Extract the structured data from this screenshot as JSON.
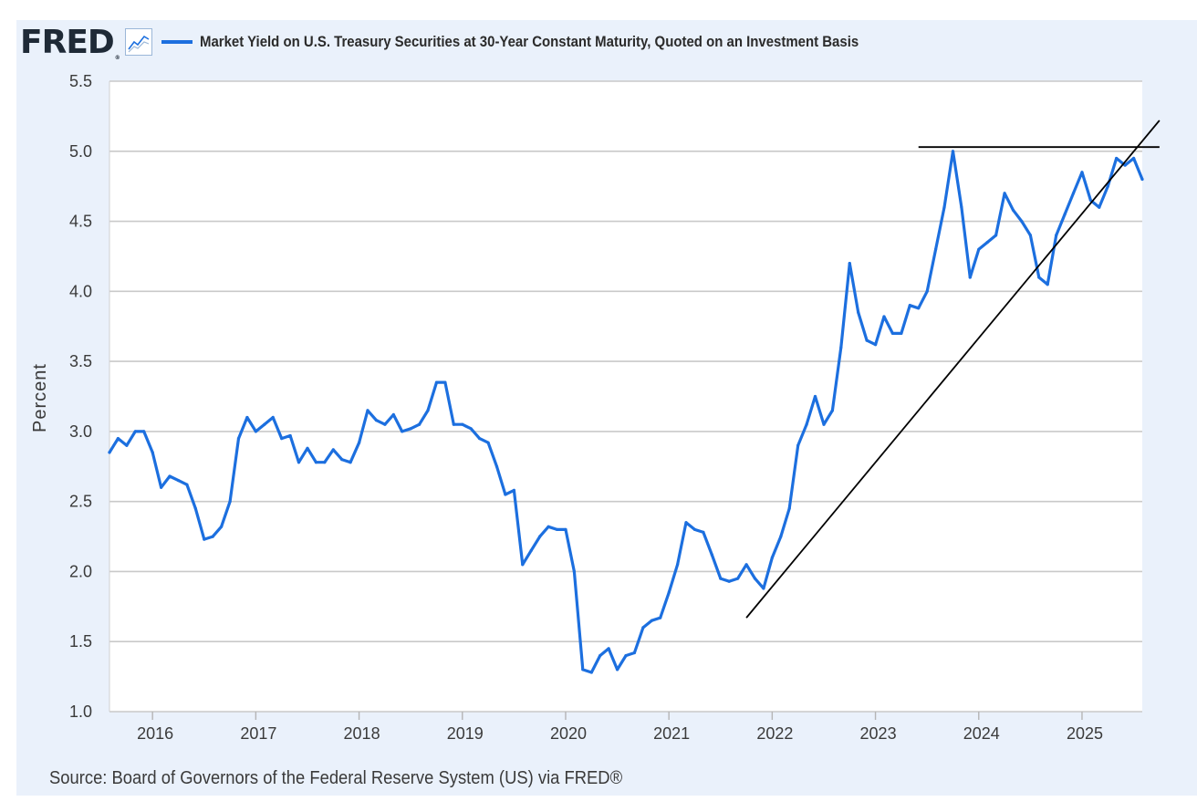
{
  "header": {
    "logo": "FRED",
    "logo_reg": "®",
    "series_title": "Market Yield on U.S. Treasury Securities at 30-Year Constant Maturity, Quoted on an Investment Basis"
  },
  "footer": {
    "source": "Source: Board of Governors of the Federal Reserve System (US) via FRED®"
  },
  "colors": {
    "frame_bg": "#eaf1fb",
    "series_line": "#1c6fdf",
    "grid": "#c9c9c9",
    "annotation": "#000000"
  },
  "chart_data": {
    "type": "line",
    "title": "Market Yield on U.S. Treasury Securities at 30-Year Constant Maturity, Quoted on an Investment Basis",
    "xlabel": "",
    "ylabel": "Percent",
    "xlim": [
      "2015-08",
      "2025-08"
    ],
    "ylim": [
      1.0,
      5.5
    ],
    "grid": true,
    "x_ticks": [
      "2016",
      "2017",
      "2018",
      "2019",
      "2020",
      "2021",
      "2022",
      "2023",
      "2024",
      "2025"
    ],
    "y_ticks": [
      "1.0",
      "1.5",
      "2.0",
      "2.5",
      "3.0",
      "3.5",
      "4.0",
      "4.5",
      "5.0",
      "5.5"
    ],
    "series": [
      {
        "name": "Market Yield on U.S. Treasury Securities at 30-Year Constant Maturity, Quoted on an Investment Basis",
        "points": [
          [
            "2015-08",
            2.85
          ],
          [
            "2015-09",
            2.95
          ],
          [
            "2015-10",
            2.9
          ],
          [
            "2015-11",
            3.0
          ],
          [
            "2015-12",
            3.0
          ],
          [
            "2016-01",
            2.85
          ],
          [
            "2016-02",
            2.6
          ],
          [
            "2016-03",
            2.68
          ],
          [
            "2016-04",
            2.65
          ],
          [
            "2016-05",
            2.62
          ],
          [
            "2016-06",
            2.45
          ],
          [
            "2016-07",
            2.23
          ],
          [
            "2016-08",
            2.25
          ],
          [
            "2016-09",
            2.32
          ],
          [
            "2016-10",
            2.5
          ],
          [
            "2016-11",
            2.95
          ],
          [
            "2016-12",
            3.1
          ],
          [
            "2017-01",
            3.0
          ],
          [
            "2017-02",
            3.05
          ],
          [
            "2017-03",
            3.1
          ],
          [
            "2017-04",
            2.95
          ],
          [
            "2017-05",
            2.97
          ],
          [
            "2017-06",
            2.78
          ],
          [
            "2017-07",
            2.88
          ],
          [
            "2017-08",
            2.78
          ],
          [
            "2017-09",
            2.78
          ],
          [
            "2017-10",
            2.87
          ],
          [
            "2017-11",
            2.8
          ],
          [
            "2017-12",
            2.78
          ],
          [
            "2018-01",
            2.92
          ],
          [
            "2018-02",
            3.15
          ],
          [
            "2018-03",
            3.08
          ],
          [
            "2018-04",
            3.05
          ],
          [
            "2018-05",
            3.12
          ],
          [
            "2018-06",
            3.0
          ],
          [
            "2018-07",
            3.02
          ],
          [
            "2018-08",
            3.05
          ],
          [
            "2018-09",
            3.15
          ],
          [
            "2018-10",
            3.35
          ],
          [
            "2018-11",
            3.35
          ],
          [
            "2018-12",
            3.05
          ],
          [
            "2019-01",
            3.05
          ],
          [
            "2019-02",
            3.02
          ],
          [
            "2019-03",
            2.95
          ],
          [
            "2019-04",
            2.92
          ],
          [
            "2019-05",
            2.75
          ],
          [
            "2019-06",
            2.55
          ],
          [
            "2019-07",
            2.58
          ],
          [
            "2019-08",
            2.05
          ],
          [
            "2019-09",
            2.15
          ],
          [
            "2019-10",
            2.25
          ],
          [
            "2019-11",
            2.32
          ],
          [
            "2019-12",
            2.3
          ],
          [
            "2020-01",
            2.3
          ],
          [
            "2020-02",
            2.0
          ],
          [
            "2020-03",
            1.3
          ],
          [
            "2020-04",
            1.28
          ],
          [
            "2020-05",
            1.4
          ],
          [
            "2020-06",
            1.45
          ],
          [
            "2020-07",
            1.3
          ],
          [
            "2020-08",
            1.4
          ],
          [
            "2020-09",
            1.42
          ],
          [
            "2020-10",
            1.6
          ],
          [
            "2020-11",
            1.65
          ],
          [
            "2020-12",
            1.67
          ],
          [
            "2021-01",
            1.85
          ],
          [
            "2021-02",
            2.05
          ],
          [
            "2021-03",
            2.35
          ],
          [
            "2021-04",
            2.3
          ],
          [
            "2021-05",
            2.28
          ],
          [
            "2021-06",
            2.12
          ],
          [
            "2021-07",
            1.95
          ],
          [
            "2021-08",
            1.93
          ],
          [
            "2021-09",
            1.95
          ],
          [
            "2021-10",
            2.05
          ],
          [
            "2021-11",
            1.95
          ],
          [
            "2021-12",
            1.88
          ],
          [
            "2022-01",
            2.1
          ],
          [
            "2022-02",
            2.25
          ],
          [
            "2022-03",
            2.45
          ],
          [
            "2022-04",
            2.9
          ],
          [
            "2022-05",
            3.05
          ],
          [
            "2022-06",
            3.25
          ],
          [
            "2022-07",
            3.05
          ],
          [
            "2022-08",
            3.15
          ],
          [
            "2022-09",
            3.6
          ],
          [
            "2022-10",
            4.2
          ],
          [
            "2022-11",
            3.85
          ],
          [
            "2022-12",
            3.65
          ],
          [
            "2023-01",
            3.62
          ],
          [
            "2023-02",
            3.82
          ],
          [
            "2023-03",
            3.7
          ],
          [
            "2023-04",
            3.7
          ],
          [
            "2023-05",
            3.9
          ],
          [
            "2023-06",
            3.88
          ],
          [
            "2023-07",
            4.0
          ],
          [
            "2023-08",
            4.3
          ],
          [
            "2023-09",
            4.6
          ],
          [
            "2023-10",
            5.0
          ],
          [
            "2023-11",
            4.6
          ],
          [
            "2023-12",
            4.1
          ],
          [
            "2024-01",
            4.3
          ],
          [
            "2024-02",
            4.35
          ],
          [
            "2024-03",
            4.4
          ],
          [
            "2024-04",
            4.7
          ],
          [
            "2024-05",
            4.58
          ],
          [
            "2024-06",
            4.5
          ],
          [
            "2024-07",
            4.4
          ],
          [
            "2024-08",
            4.1
          ],
          [
            "2024-09",
            4.05
          ],
          [
            "2024-10",
            4.4
          ],
          [
            "2024-11",
            4.55
          ],
          [
            "2024-12",
            4.7
          ],
          [
            "2025-01",
            4.85
          ],
          [
            "2025-02",
            4.65
          ],
          [
            "2025-03",
            4.6
          ],
          [
            "2025-04",
            4.75
          ],
          [
            "2025-05",
            4.95
          ],
          [
            "2025-06",
            4.9
          ],
          [
            "2025-07",
            4.95
          ],
          [
            "2025-08",
            4.8
          ]
        ]
      }
    ],
    "annotations": [
      {
        "type": "resistance-line",
        "from": [
          "2023-06",
          5.03
        ],
        "to": [
          "2025-10",
          5.03
        ]
      },
      {
        "type": "support-trendline",
        "from": [
          "2021-10",
          1.67
        ],
        "to": [
          "2025-10",
          5.22
        ]
      }
    ]
  }
}
